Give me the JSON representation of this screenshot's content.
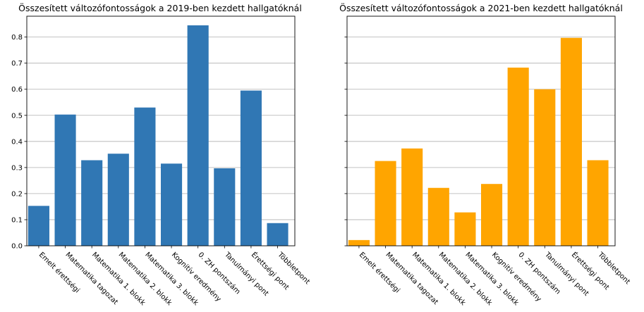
{
  "chart_data": [
    {
      "type": "bar",
      "title": "Összesített változófontosságok a 2019-ben kezdett hallgatóknál",
      "xlabel": "",
      "ylabel": "",
      "categories": [
        "Emelt érettségi",
        "Matematika tagozat",
        "Matematika 1. blokk",
        "Matematika 2. blokk",
        "Matematika 3. blokk",
        "Kognitív eredmény",
        "0. ZH pontszám",
        "Tanulmányi pont",
        "Érettségi pont",
        "Többletpont"
      ],
      "values": [
        0.153,
        0.503,
        0.328,
        0.353,
        0.53,
        0.315,
        0.845,
        0.297,
        0.595,
        0.087
      ],
      "color": "#3077b4",
      "ylim": [
        0,
        0.88
      ],
      "yticks": [
        "0.0",
        "0.1",
        "0.2",
        "0.3",
        "0.4",
        "0.5",
        "0.6",
        "0.7",
        "0.8"
      ],
      "grid": "y"
    },
    {
      "type": "bar",
      "title": "Összesített változófontosságok a 2021-ben kezdett hallgatóknál",
      "xlabel": "",
      "ylabel": "",
      "categories": [
        "Emelt érettségi",
        "Matematika tagozat",
        "Matematika 1. blokk",
        "Matematika 2. blokk",
        "Matematika 3. blokk",
        "Kognitív eredmény",
        "0. ZH pontszám",
        "Tanulmányi pont",
        "Érettségi pont",
        "Többletpont"
      ],
      "values": [
        0.022,
        0.325,
        0.373,
        0.222,
        0.128,
        0.237,
        0.683,
        0.6,
        0.797,
        0.328
      ],
      "color": "#ffa500",
      "ylim": [
        0,
        0.88
      ],
      "yticks": [],
      "grid": "y"
    }
  ]
}
